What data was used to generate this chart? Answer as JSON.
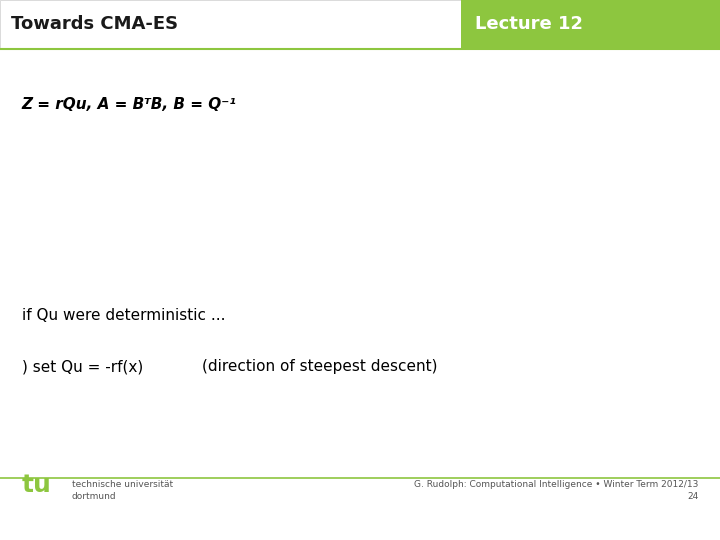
{
  "title_left": "Towards CMA-ES",
  "title_right": "Lecture 12",
  "header_bg_left": "#ffffff",
  "header_bg_right": "#8dc63f",
  "header_text_color_left": "#1a1a1a",
  "header_text_color_right": "#ffffff",
  "slide_bg": "#ffffff",
  "line1": "Z = rQu, A = BᵀB, B = Q⁻¹",
  "line2": "if Qu were deterministic ...",
  "line3_part1": ") set Qu = -rf(x)",
  "line3_part2": "    (direction of steepest descent)",
  "footer_left_line1": "technische universität",
  "footer_left_line2": "dortmund",
  "footer_right": "G. Rudolph: Computational Intelligence • Winter Term 2012/13",
  "page_number": "24",
  "accent_color": "#8dc63f",
  "footer_text_color": "#555555",
  "body_text_color": "#000000"
}
